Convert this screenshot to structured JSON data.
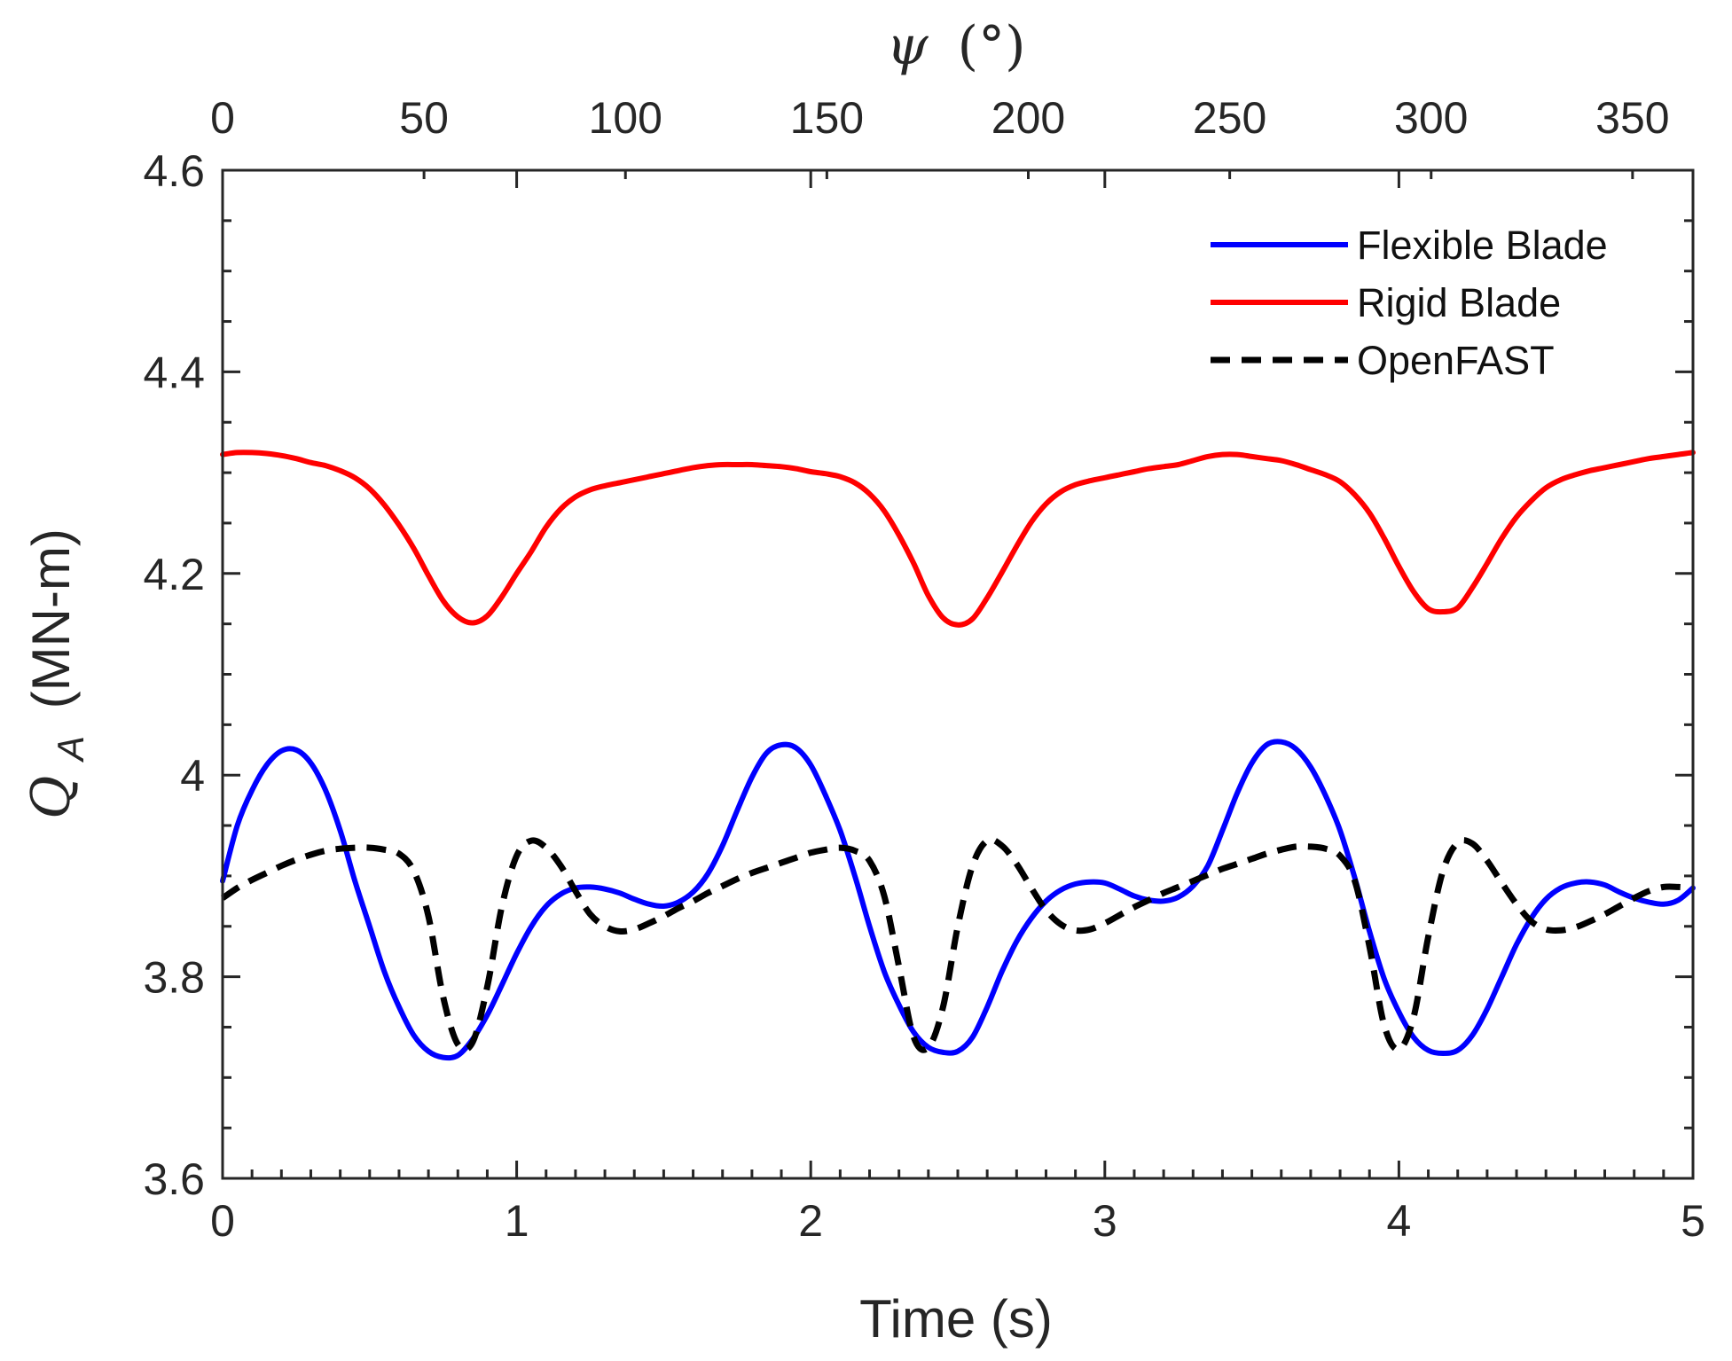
{
  "chart_data": {
    "type": "line",
    "title": "",
    "xlabel": "Time (s)",
    "ylabel": "Q_A (MN-m)",
    "ylabel_parts": {
      "symbol": "Q",
      "subscript": "A",
      "unit": "(MN-m)"
    },
    "x2label": "ψ (°)",
    "x2label_parts": {
      "symbol": "ψ",
      "unit": "(°)"
    },
    "xlim": [
      0,
      5
    ],
    "ylim": [
      3.6,
      4.6
    ],
    "x2lim": [
      0,
      365
    ],
    "xticks": [
      0,
      1,
      2,
      3,
      4,
      5
    ],
    "xtick_labels": [
      "0",
      "1",
      "2",
      "3",
      "4",
      "5"
    ],
    "yticks": [
      3.6,
      3.8,
      4.0,
      4.2,
      4.4,
      4.6
    ],
    "ytick_labels": [
      "3.6",
      "3.8",
      "4",
      "4.2",
      "4.4",
      "4.6"
    ],
    "x2ticks": [
      0,
      50,
      100,
      150,
      200,
      250,
      300,
      350
    ],
    "x2tick_labels": [
      "0",
      "50",
      "100",
      "150",
      "200",
      "250",
      "300",
      "350"
    ],
    "grid": false,
    "legend_position": "top-right",
    "series": [
      {
        "name": "Flexible Blade",
        "color": "#0000ff",
        "style": "solid",
        "x": [
          0,
          0.05,
          0.1,
          0.15,
          0.2,
          0.25,
          0.3,
          0.35,
          0.4,
          0.45,
          0.5,
          0.55,
          0.6,
          0.65,
          0.7,
          0.75,
          0.8,
          0.85,
          0.9,
          0.95,
          1.0,
          1.05,
          1.1,
          1.15,
          1.2,
          1.25,
          1.3,
          1.35,
          1.4,
          1.45,
          1.5,
          1.55,
          1.6,
          1.65,
          1.7,
          1.75,
          1.8,
          1.85,
          1.9,
          1.95,
          2.0,
          2.05,
          2.1,
          2.15,
          2.2,
          2.25,
          2.3,
          2.35,
          2.4,
          2.45,
          2.5,
          2.55,
          2.6,
          2.65,
          2.7,
          2.75,
          2.8,
          2.85,
          2.9,
          2.95,
          3.0,
          3.05,
          3.1,
          3.15,
          3.2,
          3.25,
          3.3,
          3.35,
          3.4,
          3.45,
          3.5,
          3.55,
          3.6,
          3.65,
          3.7,
          3.75,
          3.8,
          3.85,
          3.9,
          3.95,
          4.0,
          4.05,
          4.1,
          4.15,
          4.2,
          4.25,
          4.3,
          4.35,
          4.4,
          4.45,
          4.5,
          4.55,
          4.6,
          4.65,
          4.7,
          4.75,
          4.8,
          4.85,
          4.9,
          4.95,
          5.0
        ],
        "values": [
          3.895,
          3.95,
          3.985,
          4.01,
          4.024,
          4.025,
          4.012,
          3.985,
          3.945,
          3.895,
          3.85,
          3.805,
          3.77,
          3.742,
          3.726,
          3.72,
          3.722,
          3.738,
          3.762,
          3.792,
          3.823,
          3.85,
          3.87,
          3.882,
          3.888,
          3.889,
          3.887,
          3.883,
          3.877,
          3.872,
          3.87,
          3.874,
          3.884,
          3.902,
          3.93,
          3.965,
          3.998,
          4.022,
          4.03,
          4.027,
          4.01,
          3.98,
          3.945,
          3.9,
          3.85,
          3.805,
          3.772,
          3.745,
          3.73,
          3.725,
          3.726,
          3.74,
          3.77,
          3.805,
          3.835,
          3.858,
          3.875,
          3.886,
          3.892,
          3.894,
          3.893,
          3.887,
          3.88,
          3.876,
          3.875,
          3.879,
          3.89,
          3.91,
          3.945,
          3.982,
          4.012,
          4.03,
          4.033,
          4.026,
          4.008,
          3.98,
          3.945,
          3.898,
          3.845,
          3.798,
          3.765,
          3.74,
          3.727,
          3.724,
          3.727,
          3.742,
          3.768,
          3.8,
          3.832,
          3.858,
          3.877,
          3.888,
          3.893,
          3.894,
          3.891,
          3.884,
          3.878,
          3.874,
          3.872,
          3.876,
          3.888
        ]
      },
      {
        "name": "Rigid Blade",
        "color": "#ff0000",
        "style": "solid",
        "x": [
          0,
          0.05,
          0.1,
          0.15,
          0.2,
          0.25,
          0.3,
          0.35,
          0.4,
          0.45,
          0.5,
          0.55,
          0.6,
          0.65,
          0.7,
          0.75,
          0.8,
          0.85,
          0.9,
          0.95,
          1.0,
          1.05,
          1.1,
          1.15,
          1.2,
          1.25,
          1.3,
          1.35,
          1.4,
          1.45,
          1.5,
          1.55,
          1.6,
          1.65,
          1.7,
          1.75,
          1.8,
          1.85,
          1.9,
          1.95,
          2.0,
          2.05,
          2.1,
          2.15,
          2.2,
          2.25,
          2.3,
          2.35,
          2.4,
          2.45,
          2.5,
          2.55,
          2.6,
          2.65,
          2.7,
          2.75,
          2.8,
          2.85,
          2.9,
          2.95,
          3.0,
          3.05,
          3.1,
          3.15,
          3.2,
          3.25,
          3.3,
          3.35,
          3.4,
          3.45,
          3.5,
          3.55,
          3.6,
          3.65,
          3.7,
          3.75,
          3.8,
          3.85,
          3.9,
          3.95,
          4.0,
          4.05,
          4.1,
          4.15,
          4.2,
          4.25,
          4.3,
          4.35,
          4.4,
          4.45,
          4.5,
          4.55,
          4.6,
          4.65,
          4.7,
          4.75,
          4.8,
          4.85,
          4.9,
          4.95,
          5.0
        ],
        "values": [
          4.318,
          4.32,
          4.32,
          4.319,
          4.317,
          4.314,
          4.31,
          4.307,
          4.302,
          4.295,
          4.284,
          4.268,
          4.248,
          4.225,
          4.198,
          4.173,
          4.157,
          4.151,
          4.158,
          4.177,
          4.2,
          4.222,
          4.246,
          4.264,
          4.276,
          4.283,
          4.287,
          4.29,
          4.293,
          4.296,
          4.299,
          4.302,
          4.305,
          4.307,
          4.308,
          4.308,
          4.308,
          4.307,
          4.306,
          4.304,
          4.301,
          4.299,
          4.296,
          4.29,
          4.279,
          4.262,
          4.238,
          4.21,
          4.178,
          4.156,
          4.149,
          4.155,
          4.176,
          4.201,
          4.227,
          4.251,
          4.269,
          4.281,
          4.288,
          4.292,
          4.295,
          4.298,
          4.301,
          4.304,
          4.306,
          4.308,
          4.312,
          4.316,
          4.318,
          4.318,
          4.316,
          4.314,
          4.312,
          4.308,
          4.303,
          4.298,
          4.291,
          4.278,
          4.26,
          4.235,
          4.207,
          4.182,
          4.165,
          4.162,
          4.166,
          4.186,
          4.21,
          4.235,
          4.256,
          4.272,
          4.285,
          4.293,
          4.298,
          4.302,
          4.305,
          4.308,
          4.311,
          4.314,
          4.316,
          4.318,
          4.32
        ]
      },
      {
        "name": "OpenFAST",
        "color": "#000000",
        "style": "dashed",
        "x": [
          0,
          0.05,
          0.1,
          0.15,
          0.2,
          0.25,
          0.3,
          0.35,
          0.4,
          0.45,
          0.5,
          0.55,
          0.6,
          0.65,
          0.7,
          0.75,
          0.8,
          0.85,
          0.9,
          0.95,
          1.0,
          1.05,
          1.1,
          1.15,
          1.2,
          1.25,
          1.3,
          1.35,
          1.4,
          1.45,
          1.5,
          1.55,
          1.6,
          1.65,
          1.7,
          1.75,
          1.8,
          1.85,
          1.9,
          1.95,
          2.0,
          2.05,
          2.1,
          2.15,
          2.2,
          2.25,
          2.3,
          2.35,
          2.4,
          2.45,
          2.5,
          2.55,
          2.6,
          2.65,
          2.7,
          2.75,
          2.8,
          2.85,
          2.9,
          2.95,
          3.0,
          3.05,
          3.1,
          3.15,
          3.2,
          3.25,
          3.3,
          3.35,
          3.4,
          3.45,
          3.5,
          3.55,
          3.6,
          3.65,
          3.7,
          3.75,
          3.8,
          3.85,
          3.9,
          3.95,
          4.0,
          4.05,
          4.1,
          4.15,
          4.2,
          4.25,
          4.3,
          4.35,
          4.4,
          4.45,
          4.5,
          4.55,
          4.6,
          4.65,
          4.7,
          4.75,
          4.8,
          4.85,
          4.9,
          4.95,
          5.0
        ],
        "values": [
          3.878,
          3.888,
          3.896,
          3.903,
          3.91,
          3.916,
          3.921,
          3.925,
          3.927,
          3.928,
          3.928,
          3.926,
          3.922,
          3.905,
          3.86,
          3.78,
          3.733,
          3.735,
          3.79,
          3.87,
          3.92,
          3.935,
          3.928,
          3.91,
          3.885,
          3.862,
          3.85,
          3.845,
          3.847,
          3.853,
          3.86,
          3.868,
          3.875,
          3.883,
          3.89,
          3.897,
          3.903,
          3.908,
          3.913,
          3.918,
          3.923,
          3.926,
          3.928,
          3.925,
          3.915,
          3.88,
          3.81,
          3.74,
          3.73,
          3.77,
          3.85,
          3.91,
          3.935,
          3.93,
          3.912,
          3.888,
          3.866,
          3.852,
          3.846,
          3.847,
          3.853,
          3.861,
          3.869,
          3.876,
          3.883,
          3.889,
          3.895,
          3.901,
          3.907,
          3.912,
          3.917,
          3.922,
          3.926,
          3.929,
          3.929,
          3.927,
          3.92,
          3.895,
          3.83,
          3.752,
          3.728,
          3.76,
          3.84,
          3.905,
          3.933,
          3.932,
          3.915,
          3.893,
          3.872,
          3.855,
          3.847,
          3.846,
          3.849,
          3.855,
          3.862,
          3.87,
          3.878,
          3.885,
          3.889,
          3.889,
          3.888
        ]
      }
    ]
  }
}
